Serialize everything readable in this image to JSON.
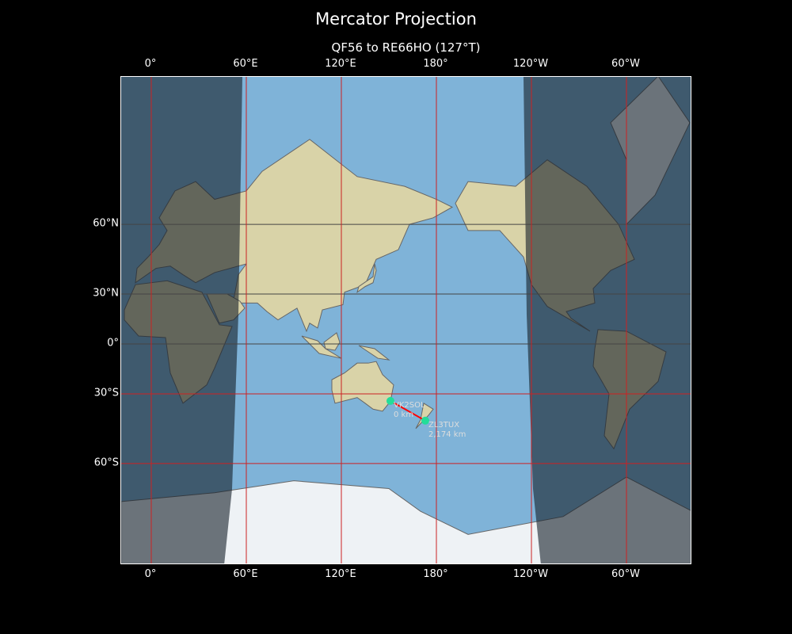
{
  "title": "Mercator Projection",
  "subtitle": "QF56 to RE66HO (127°T)",
  "map": {
    "projection": "mercator",
    "lon_range": [
      -19,
      341.5
    ],
    "lat_range": [
      -80,
      84
    ],
    "lon_ticks": [
      {
        "lon": 0,
        "label": "0°"
      },
      {
        "lon": 60,
        "label": "60°E"
      },
      {
        "lon": 120,
        "label": "120°E"
      },
      {
        "lon": 180,
        "label": "180°"
      },
      {
        "lon": 240,
        "label": "120°W"
      },
      {
        "lon": 300,
        "label": "60°W"
      }
    ],
    "lat_ticks": [
      {
        "lat": 60,
        "label": "60°N"
      },
      {
        "lat": 30,
        "label": "30°N"
      },
      {
        "lat": 0,
        "label": "0°"
      },
      {
        "lat": -30,
        "label": "30°S"
      },
      {
        "lat": -60,
        "label": "60°S"
      }
    ],
    "colors": {
      "ocean": "#7fb3d8",
      "land": "#d9d3a8",
      "ice": "#eef2f5",
      "night": "rgba(20,30,40,0.6)",
      "grid": "#cc2222",
      "path": "#ff0000",
      "marker": "#22dd99"
    },
    "stations": [
      {
        "call": "VK2SOL",
        "distance": "0 km",
        "lon": 151,
        "lat": -33.8
      },
      {
        "call": "ZL3TUX",
        "distance": "2,174 km",
        "lon": 173,
        "lat": -43.5
      }
    ]
  }
}
